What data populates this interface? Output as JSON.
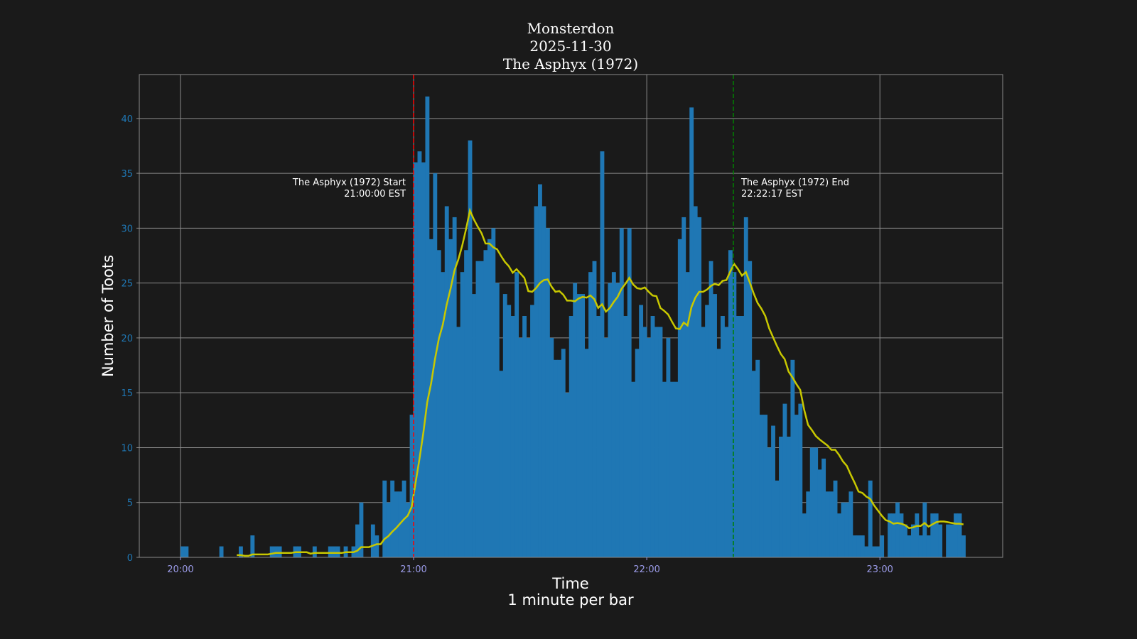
{
  "chart_data": {
    "type": "bar",
    "title_lines": [
      "Monsterdon",
      "2025-11-30",
      "The Asphyx (1972)"
    ],
    "xlabel_lines": [
      "Time",
      "1 minute per bar"
    ],
    "ylabel": "Number of Toots",
    "x_start": "20:00",
    "x_interval_minutes": 1,
    "xlim": [
      "19:49",
      "23:32"
    ],
    "ylim": [
      0,
      44
    ],
    "x_ticks": [
      "20:00",
      "21:00",
      "22:00",
      "23:00"
    ],
    "y_ticks": [
      0,
      5,
      10,
      15,
      20,
      25,
      30,
      35,
      40
    ],
    "grid": true,
    "bar_color": "#1f77b4",
    "moving_average_color": "#c8c800",
    "values": [
      1,
      1,
      0,
      0,
      0,
      0,
      0,
      0,
      0,
      0,
      1,
      0,
      0,
      0,
      0,
      1,
      0,
      0,
      2,
      0,
      0,
      0,
      0,
      1,
      1,
      1,
      0,
      0,
      0,
      1,
      1,
      0,
      0,
      0,
      1,
      0,
      0,
      0,
      1,
      1,
      1,
      0,
      1,
      0,
      1,
      3,
      5,
      0,
      0,
      3,
      2,
      0,
      7,
      5,
      7,
      6,
      6,
      7,
      5,
      13,
      36,
      37,
      36,
      42,
      29,
      35,
      28,
      26,
      32,
      29,
      31,
      21,
      26,
      28,
      38,
      24,
      27,
      27,
      28,
      29,
      30,
      25,
      17,
      24,
      23,
      22,
      26,
      20,
      22,
      20,
      23,
      32,
      34,
      32,
      30,
      20,
      18,
      18,
      19,
      15,
      22,
      25,
      24,
      24,
      19,
      26,
      27,
      22,
      37,
      20,
      25,
      26,
      25,
      30,
      22,
      30,
      16,
      19,
      23,
      21,
      20,
      22,
      21,
      21,
      16,
      20,
      16,
      16,
      29,
      31,
      26,
      41,
      32,
      31,
      21,
      23,
      27,
      24,
      19,
      22,
      21,
      28,
      26,
      22,
      22,
      31,
      27,
      17,
      18,
      13,
      13,
      10,
      12,
      7,
      11,
      14,
      11,
      18,
      13,
      14,
      4,
      6,
      10,
      10,
      8,
      9,
      6,
      6,
      7,
      4,
      5,
      5,
      6,
      2,
      2,
      2,
      1,
      7,
      1,
      1,
      2,
      0,
      4,
      4,
      5,
      4,
      3,
      2,
      3,
      4,
      2,
      5,
      2,
      4,
      4,
      3,
      0,
      3,
      3,
      4,
      4,
      2
    ],
    "annotations": [
      {
        "time": "21:00:00",
        "lines": [
          "The Asphyx (1972) Start",
          "21:00:00 EST"
        ],
        "color": "#ff0000",
        "align": "right"
      },
      {
        "time": "22:22:17",
        "lines": [
          "The Asphyx (1972) End",
          "22:22:17 EST"
        ],
        "color": "#008000",
        "align": "left"
      }
    ]
  }
}
